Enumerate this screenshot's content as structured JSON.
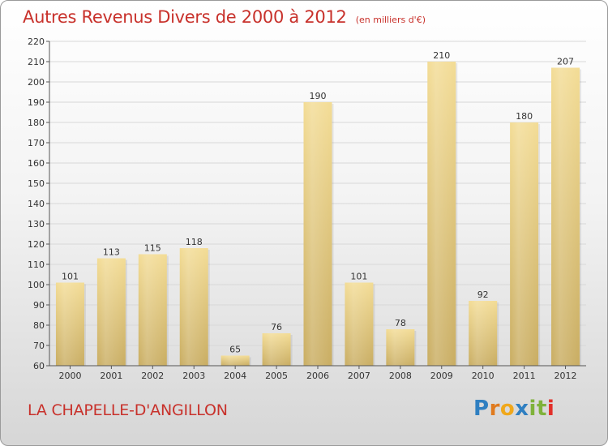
{
  "title": "Autres Revenus Divers de 2000 à 2012",
  "unit_note": "(en milliers d'€)",
  "commune": "LA CHAPELLE-D'ANGILLON",
  "logo": {
    "letters": [
      "P",
      "r",
      "o",
      "x",
      "i",
      "t",
      "i"
    ],
    "colors": [
      "#2f7fc1",
      "#e07b1f",
      "#f0a81c",
      "#2f7fc1",
      "#7fb23a",
      "#7fb23a",
      "#e2302a"
    ]
  },
  "colors": {
    "title": "#c8312b",
    "bar_light": "#f3dc95",
    "bar_dark": "#c9ad62",
    "axis": "#555555",
    "grid": "#d8d8d8"
  },
  "chart_data": {
    "type": "bar",
    "categories": [
      "2000",
      "2001",
      "2002",
      "2003",
      "2004",
      "2005",
      "2006",
      "2007",
      "2008",
      "2009",
      "2010",
      "2011",
      "2012"
    ],
    "values": [
      101,
      113,
      115,
      118,
      65,
      76,
      190,
      101,
      78,
      210,
      92,
      180,
      207
    ],
    "ylim": [
      60,
      220
    ],
    "yticks": [
      60,
      70,
      80,
      90,
      100,
      110,
      120,
      130,
      140,
      150,
      160,
      170,
      180,
      190,
      200,
      210,
      220
    ],
    "grid": true,
    "xlabel": "",
    "ylabel": ""
  }
}
